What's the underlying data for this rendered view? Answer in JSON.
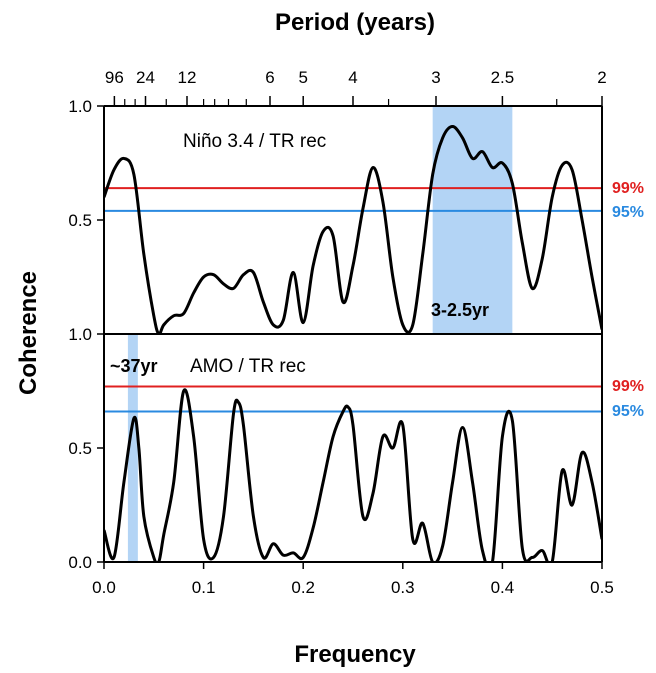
{
  "chart_data": {
    "type": "line",
    "x_axis": {
      "label": "Frequency",
      "range": [
        0,
        0.5
      ],
      "ticks": [
        0.0,
        0.1,
        0.2,
        0.3,
        0.4,
        0.5
      ],
      "tick_labels": [
        "0.0",
        "0.1",
        "0.2",
        "0.3",
        "0.4",
        "0.5"
      ]
    },
    "top_axis": {
      "label": "Period (years)",
      "labeled_periods": [
        96,
        24,
        12,
        6,
        5,
        4,
        3,
        2.5,
        2
      ],
      "tick_labels": [
        "96",
        "24",
        "12",
        "6",
        "5",
        "4",
        "3",
        "2.5",
        "2"
      ],
      "minor_periods": [
        48,
        32,
        16,
        10,
        9,
        8,
        7,
        3.5,
        2.2
      ]
    },
    "y_axis": {
      "label": "Coherence",
      "range": [
        0,
        1
      ]
    },
    "panels": [
      {
        "label": "Niño 3.4 / TR rec",
        "y_ticks": [
          0.5,
          1.0
        ],
        "y_tick_labels": [
          "0.5",
          "1.0"
        ],
        "band": {
          "x_range": [
            0.33,
            0.41
          ],
          "label": "3-2.5yr",
          "color": "#b3d4f5"
        },
        "sig_99": {
          "y": 0.64,
          "label": "99%",
          "color": "#e02020"
        },
        "sig_95": {
          "y": 0.54,
          "label": "95%",
          "color": "#2a8ae0"
        },
        "x": [
          0.0,
          0.01,
          0.02,
          0.03,
          0.04,
          0.05,
          0.055,
          0.06,
          0.07,
          0.08,
          0.09,
          0.1,
          0.11,
          0.12,
          0.13,
          0.14,
          0.15,
          0.16,
          0.17,
          0.18,
          0.19,
          0.2,
          0.21,
          0.22,
          0.23,
          0.24,
          0.25,
          0.26,
          0.27,
          0.28,
          0.29,
          0.3,
          0.31,
          0.32,
          0.33,
          0.34,
          0.35,
          0.36,
          0.37,
          0.38,
          0.39,
          0.4,
          0.41,
          0.42,
          0.43,
          0.44,
          0.45,
          0.46,
          0.47,
          0.48,
          0.49,
          0.5
        ],
        "y": [
          0.6,
          0.72,
          0.77,
          0.7,
          0.35,
          0.08,
          0.0,
          0.04,
          0.08,
          0.09,
          0.18,
          0.25,
          0.26,
          0.22,
          0.2,
          0.26,
          0.27,
          0.14,
          0.04,
          0.06,
          0.27,
          0.05,
          0.3,
          0.45,
          0.43,
          0.14,
          0.3,
          0.55,
          0.73,
          0.58,
          0.25,
          0.04,
          0.04,
          0.35,
          0.7,
          0.86,
          0.91,
          0.86,
          0.77,
          0.8,
          0.73,
          0.75,
          0.66,
          0.4,
          0.2,
          0.33,
          0.6,
          0.74,
          0.72,
          0.5,
          0.25,
          0.02
        ]
      },
      {
        "label": "AMO / TR rec",
        "y_ticks": [
          0.0,
          0.5,
          1.0
        ],
        "y_tick_labels": [
          "0.0",
          "0.5",
          "1.0"
        ],
        "band": {
          "x_range": [
            0.024,
            0.034
          ],
          "label": "~37yr",
          "color": "#b3d4f5"
        },
        "sig_99": {
          "y": 0.77,
          "label": "99%",
          "color": "#e02020"
        },
        "sig_95": {
          "y": 0.66,
          "label": "95%",
          "color": "#2a8ae0"
        },
        "x": [
          0.0,
          0.01,
          0.02,
          0.03,
          0.035,
          0.04,
          0.05,
          0.055,
          0.06,
          0.07,
          0.08,
          0.09,
          0.1,
          0.11,
          0.12,
          0.13,
          0.135,
          0.14,
          0.15,
          0.16,
          0.17,
          0.18,
          0.19,
          0.2,
          0.21,
          0.22,
          0.23,
          0.24,
          0.245,
          0.25,
          0.26,
          0.27,
          0.28,
          0.29,
          0.3,
          0.31,
          0.32,
          0.33,
          0.34,
          0.35,
          0.36,
          0.37,
          0.38,
          0.39,
          0.4,
          0.41,
          0.42,
          0.43,
          0.44,
          0.45,
          0.46,
          0.47,
          0.48,
          0.49,
          0.5
        ],
        "y": [
          0.14,
          0.02,
          0.35,
          0.63,
          0.5,
          0.2,
          0.02,
          0.0,
          0.12,
          0.35,
          0.75,
          0.55,
          0.1,
          0.02,
          0.2,
          0.65,
          0.7,
          0.6,
          0.2,
          0.02,
          0.08,
          0.03,
          0.04,
          0.02,
          0.15,
          0.35,
          0.55,
          0.66,
          0.68,
          0.6,
          0.2,
          0.3,
          0.55,
          0.5,
          0.6,
          0.1,
          0.17,
          0.0,
          0.07,
          0.35,
          0.59,
          0.35,
          0.05,
          0.0,
          0.55,
          0.62,
          0.06,
          0.02,
          0.05,
          0.0,
          0.4,
          0.25,
          0.48,
          0.35,
          0.1
        ]
      }
    ]
  }
}
